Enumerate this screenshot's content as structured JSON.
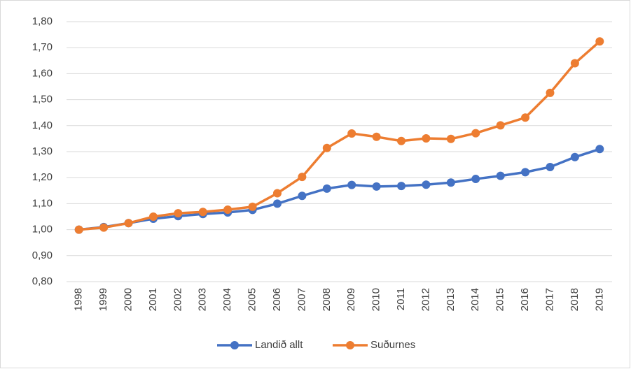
{
  "chart_data": {
    "type": "line",
    "categories": [
      "1998",
      "1999",
      "2000",
      "2001",
      "2002",
      "2003",
      "2004",
      "2005",
      "2006",
      "2007",
      "2008",
      "2009",
      "2010",
      "2011",
      "2012",
      "2013",
      "2014",
      "2015",
      "2016",
      "2017",
      "2018",
      "2019"
    ],
    "series": [
      {
        "name": "Landið allt",
        "color": "#4472c4",
        "values": [
          1.0,
          1.01,
          1.025,
          1.042,
          1.052,
          1.06,
          1.066,
          1.076,
          1.1,
          1.13,
          1.158,
          1.172,
          1.166,
          1.168,
          1.173,
          1.181,
          1.195,
          1.207,
          1.221,
          1.241,
          1.279,
          1.31
        ]
      },
      {
        "name": "Suðurnes",
        "color": "#ed7d31",
        "values": [
          1.0,
          1.008,
          1.025,
          1.05,
          1.063,
          1.068,
          1.077,
          1.088,
          1.14,
          1.203,
          1.314,
          1.37,
          1.357,
          1.341,
          1.351,
          1.349,
          1.371,
          1.401,
          1.431,
          1.526,
          1.64,
          1.724
        ]
      }
    ],
    "ylim": [
      0.8,
      1.8
    ],
    "yticks": [
      {
        "value": 0.8,
        "label": "0,80"
      },
      {
        "value": 0.9,
        "label": "0,90"
      },
      {
        "value": 1.0,
        "label": "1,00"
      },
      {
        "value": 1.1,
        "label": "1,10"
      },
      {
        "value": 1.2,
        "label": "1,20"
      },
      {
        "value": 1.3,
        "label": "1,30"
      },
      {
        "value": 1.4,
        "label": "1,40"
      },
      {
        "value": 1.5,
        "label": "1,50"
      },
      {
        "value": 1.6,
        "label": "1,60"
      },
      {
        "value": 1.7,
        "label": "1,70"
      },
      {
        "value": 1.8,
        "label": "1,80"
      }
    ],
    "grid": true,
    "legend": "bottom"
  }
}
